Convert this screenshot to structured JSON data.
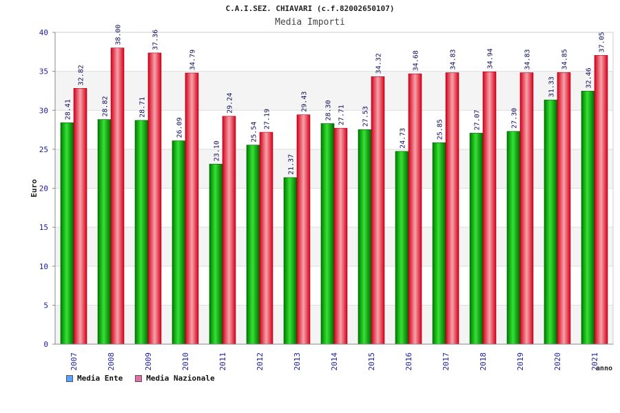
{
  "chart_data": {
    "type": "bar",
    "title": "C.A.I.SEZ. CHIAVARI (c.f.82002650107)",
    "subtitle": "Media Importi",
    "ylabel": "Euro",
    "xlabel": "anno",
    "ylim": [
      0,
      40
    ],
    "yticks": [
      0,
      5,
      10,
      15,
      20,
      25,
      30,
      35,
      40
    ],
    "grid": true,
    "legend_position": "bottom-left",
    "categories": [
      "2007",
      "2008",
      "2009",
      "2010",
      "2011",
      "2012",
      "2013",
      "2014",
      "2015",
      "2016",
      "2017",
      "2018",
      "2019",
      "2020",
      "2021"
    ],
    "series": [
      {
        "name": "Media Ente",
        "color": "#00b000",
        "values": [
          28.41,
          28.82,
          28.71,
          26.09,
          23.1,
          25.54,
          21.37,
          28.3,
          27.53,
          24.73,
          25.85,
          27.07,
          27.3,
          31.33,
          32.46
        ],
        "labels": [
          "28.41",
          "28.82",
          "28.71",
          "26.09",
          "23.10",
          "25.54",
          "21.37",
          "28.30",
          "27.53",
          "24.73",
          "25.85",
          "27.07",
          "27.30",
          "31.33",
          "32.46"
        ]
      },
      {
        "name": "Media Nazionale",
        "color": "#e8192c",
        "values": [
          32.82,
          38.0,
          37.36,
          34.79,
          29.24,
          27.19,
          29.43,
          27.71,
          34.32,
          34.68,
          34.83,
          34.94,
          34.83,
          34.85,
          37.05
        ],
        "labels": [
          "32.82",
          "38.00",
          "37.36",
          "34.79",
          "29.24",
          "27.19",
          "29.43",
          "27.71",
          "34.32",
          "34.68",
          "34.83",
          "34.94",
          "34.83",
          "34.85",
          "37.05"
        ]
      }
    ],
    "legend_swatches": [
      "#5aa0ff",
      "#e070a8"
    ]
  }
}
